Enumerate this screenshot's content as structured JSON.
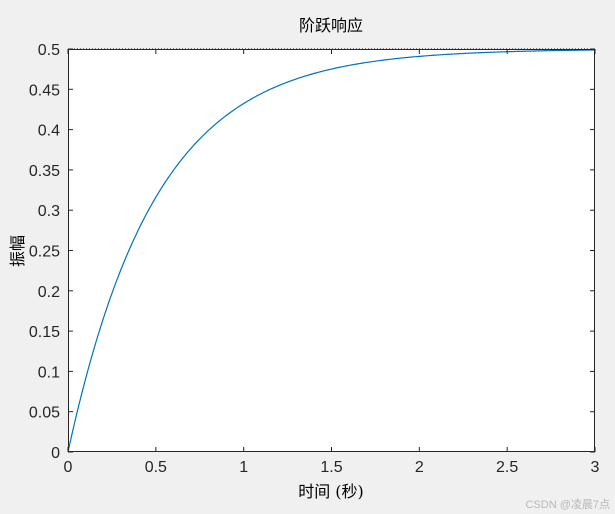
{
  "chart_data": {
    "type": "line",
    "title": "阶跃响应",
    "xlabel": "时间 (秒)",
    "ylabel": "振幅",
    "xlim": [
      0,
      3
    ],
    "ylim": [
      0,
      0.5
    ],
    "xticks": [
      "0",
      "0.5",
      "1",
      "1.5",
      "2",
      "2.5",
      "3"
    ],
    "yticks": [
      "0",
      "0.05",
      "0.1",
      "0.15",
      "0.2",
      "0.25",
      "0.3",
      "0.35",
      "0.4",
      "0.45",
      "0.5"
    ],
    "grid": false,
    "steady_state": 0.5,
    "series": [
      {
        "color": "#0072bd",
        "x": [
          0,
          0.1,
          0.2,
          0.3,
          0.4,
          0.5,
          0.6,
          0.7,
          0.8,
          0.9,
          1.0,
          1.2,
          1.4,
          1.6,
          1.8,
          2.0,
          2.2,
          2.4,
          2.6,
          2.8,
          3.0
        ],
        "y": [
          0,
          0.0906,
          0.1648,
          0.2256,
          0.2753,
          0.3161,
          0.3494,
          0.3767,
          0.3991,
          0.4174,
          0.4323,
          0.4546,
          0.4696,
          0.4796,
          0.4863,
          0.4908,
          0.4939,
          0.4959,
          0.4973,
          0.4982,
          0.4988
        ]
      }
    ]
  },
  "watermark": "CSDN @凌晨7点"
}
